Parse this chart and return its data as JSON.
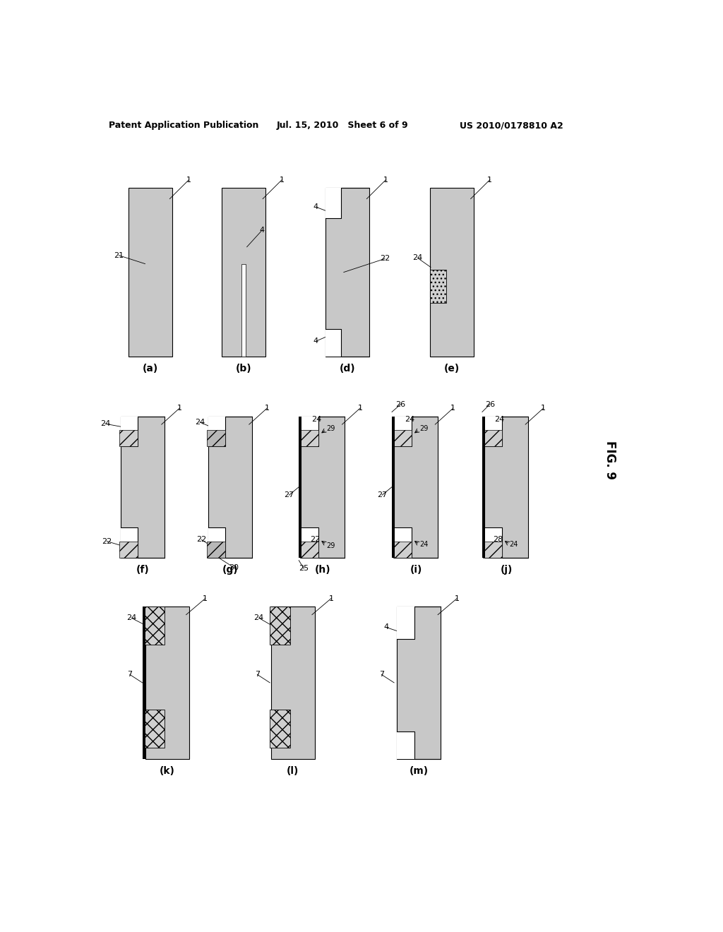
{
  "title_left": "Patent Application Publication",
  "title_mid": "Jul. 15, 2010   Sheet 6 of 9",
  "title_right": "US 2010/0178810 A2",
  "fig_label": "FIG. 9",
  "bg_color": "#ffffff",
  "dot_color": "#c8c8c8",
  "black": "#000000"
}
